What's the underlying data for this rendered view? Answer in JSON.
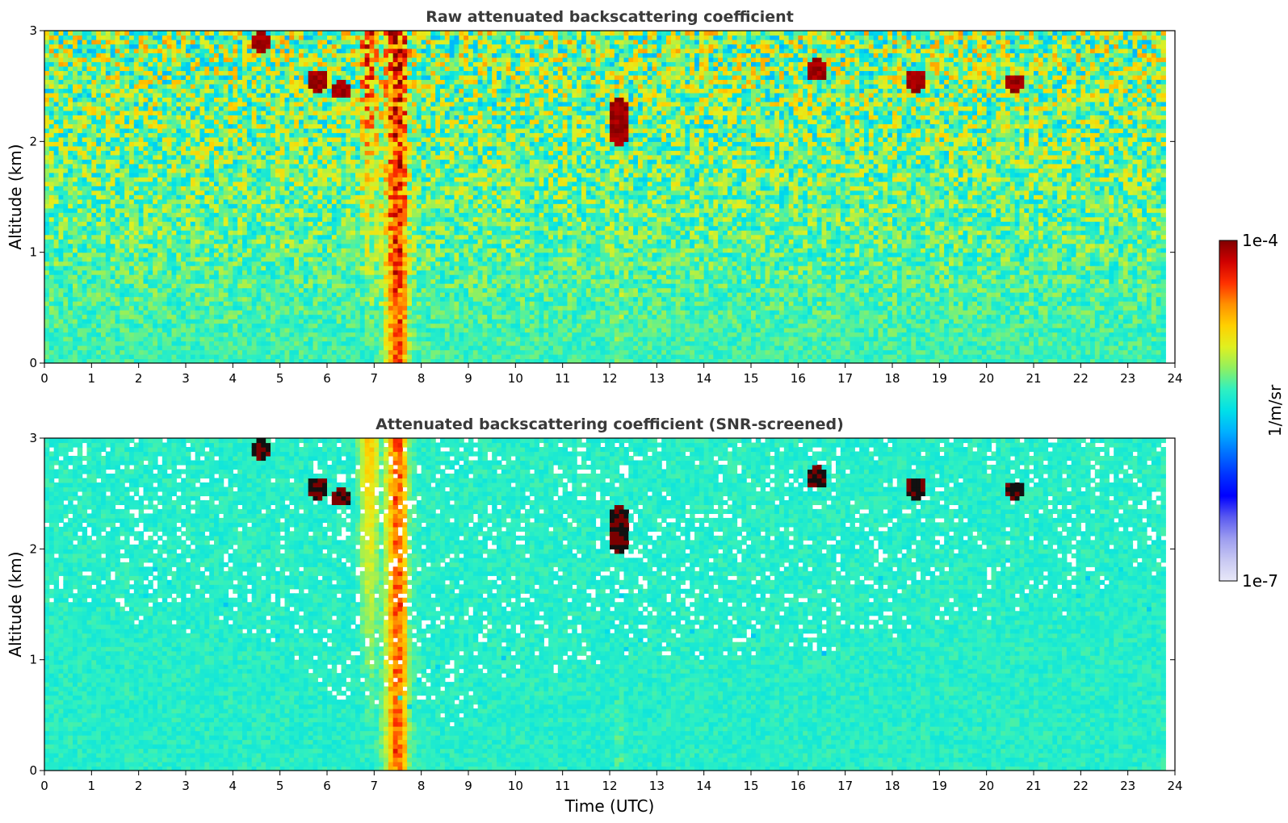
{
  "chart_data": [
    {
      "type": "heatmap",
      "title": "Raw attenuated backscattering coefficient",
      "xlabel": "",
      "ylabel": "Altitude (km)",
      "xlim": [
        0,
        24
      ],
      "ylim": [
        0,
        3
      ],
      "xticks": [
        "0",
        "1",
        "2",
        "3",
        "4",
        "5",
        "6",
        "7",
        "8",
        "9",
        "10",
        "11",
        "12",
        "13",
        "14",
        "15",
        "16",
        "17",
        "18",
        "19",
        "20",
        "21",
        "22",
        "23",
        "24"
      ],
      "yticks": [
        "0",
        "1",
        "2",
        "3"
      ],
      "data_end_time": 23.8,
      "features": [
        {
          "kind": "aerosol_layer",
          "x_range": [
            0,
            23.8
          ],
          "y_range": [
            0,
            0.9
          ]
        },
        {
          "kind": "strong_plume",
          "x_range": [
            7.25,
            7.75
          ],
          "y_range": [
            0,
            3.0
          ]
        },
        {
          "kind": "weak_plume",
          "x_range": [
            6.6,
            7.2
          ],
          "y_range": [
            0,
            3.0
          ]
        },
        {
          "kind": "thin_plume",
          "x_range": [
            12.1,
            12.35
          ],
          "y_range": [
            0,
            0.7
          ]
        },
        {
          "kind": "cloud",
          "x": 4.6,
          "y_range": [
            2.8,
            3.0
          ]
        },
        {
          "kind": "cloud",
          "x": 5.8,
          "y_range": [
            2.45,
            2.65
          ]
        },
        {
          "kind": "cloud",
          "x": 6.3,
          "y_range": [
            2.4,
            2.55
          ]
        },
        {
          "kind": "cloud",
          "x": 12.2,
          "y_range": [
            1.95,
            2.4
          ]
        },
        {
          "kind": "cloud",
          "x": 16.4,
          "y_range": [
            2.55,
            2.75
          ]
        },
        {
          "kind": "cloud",
          "x": 18.5,
          "y_range": [
            2.45,
            2.65
          ]
        },
        {
          "kind": "cloud",
          "x": 20.6,
          "y_range": [
            2.45,
            2.6
          ]
        }
      ]
    },
    {
      "type": "heatmap",
      "title": "Attenuated backscattering coefficient (SNR-screened)",
      "xlabel": "Time (UTC)",
      "ylabel": "Altitude (km)",
      "xlim": [
        0,
        24
      ],
      "ylim": [
        0,
        3
      ],
      "xticks": [
        "0",
        "1",
        "2",
        "3",
        "4",
        "5",
        "6",
        "7",
        "8",
        "9",
        "10",
        "11",
        "12",
        "13",
        "14",
        "15",
        "16",
        "17",
        "18",
        "19",
        "20",
        "21",
        "22",
        "23",
        "24"
      ],
      "yticks": [
        "0",
        "1",
        "2",
        "3"
      ],
      "data_end_time": 23.8,
      "screened_top_profile": [
        [
          0,
          1.4
        ],
        [
          2,
          1.4
        ],
        [
          3.5,
          1.3
        ],
        [
          5,
          1.1
        ],
        [
          6,
          0.65
        ],
        [
          6.6,
          0.6
        ],
        [
          7.8,
          0.55
        ],
        [
          9,
          0.45
        ],
        [
          10,
          0.85
        ],
        [
          12,
          1.05
        ],
        [
          15,
          1.1
        ],
        [
          17,
          1.15
        ],
        [
          19,
          1.4
        ],
        [
          21,
          1.45
        ],
        [
          23.8,
          1.4
        ]
      ]
    }
  ],
  "colorbar": {
    "label": "1/m/sr",
    "max_label": "1e-4",
    "min_label": "1e-7",
    "colors": [
      "#e8e8f8",
      "#c7c7f2",
      "#9c9cf0",
      "#5a5af0",
      "#0000ff",
      "#0033ff",
      "#0070ff",
      "#00b0ff",
      "#00e0e8",
      "#30f0c0",
      "#90f060",
      "#e0f020",
      "#ffd000",
      "#ff9000",
      "#ff3000",
      "#d00000",
      "#800000"
    ]
  }
}
